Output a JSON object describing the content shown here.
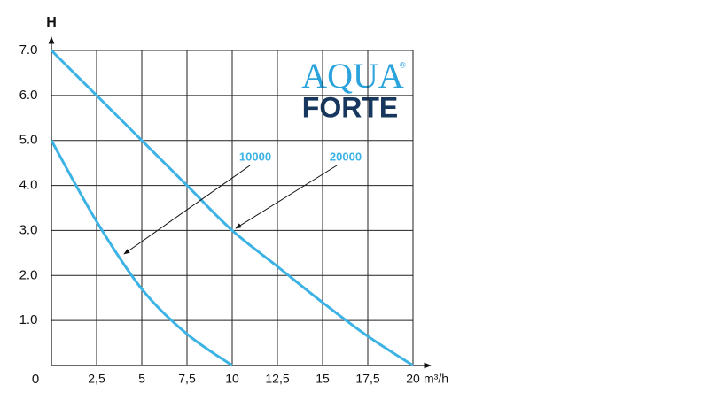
{
  "chart_data": {
    "type": "line",
    "y_label": "H",
    "x_label": "m³/h",
    "xlim": [
      0,
      20
    ],
    "ylim": [
      0,
      7
    ],
    "xticks": [
      {
        "value": 2.5,
        "label": "2,5"
      },
      5,
      {
        "value": 7.5,
        "label": "7,5"
      },
      10,
      {
        "value": 12.5,
        "label": "12,5"
      },
      15,
      {
        "value": 17.5,
        "label": "17,5"
      },
      20
    ],
    "yticks": [
      0,
      {
        "value": 1,
        "label": "1.0"
      },
      {
        "value": 2,
        "label": "2.0"
      },
      {
        "value": 3,
        "label": "3.0"
      },
      {
        "value": 4,
        "label": "4.0"
      },
      {
        "value": 5,
        "label": "5.0"
      },
      {
        "value": 6,
        "label": "6.0"
      },
      {
        "value": 7,
        "label": "7.0"
      }
    ],
    "grid": true,
    "series": [
      {
        "name": "10000",
        "color": "#3cb3e4",
        "x": [
          0,
          2.5,
          5,
          7.5,
          10
        ],
        "values": [
          5.0,
          3.2,
          1.7,
          0.7,
          0
        ]
      },
      {
        "name": "20000",
        "color": "#3cb3e4",
        "x": [
          0,
          2.5,
          5,
          7.5,
          10,
          12.5,
          15,
          17.5,
          20
        ],
        "values": [
          7.0,
          6.0,
          5.0,
          4.0,
          3.0,
          2.2,
          1.4,
          0.65,
          0
        ]
      }
    ],
    "logo": {
      "line1": "AQUA",
      "line2": "FORTE",
      "mark": "®"
    }
  }
}
